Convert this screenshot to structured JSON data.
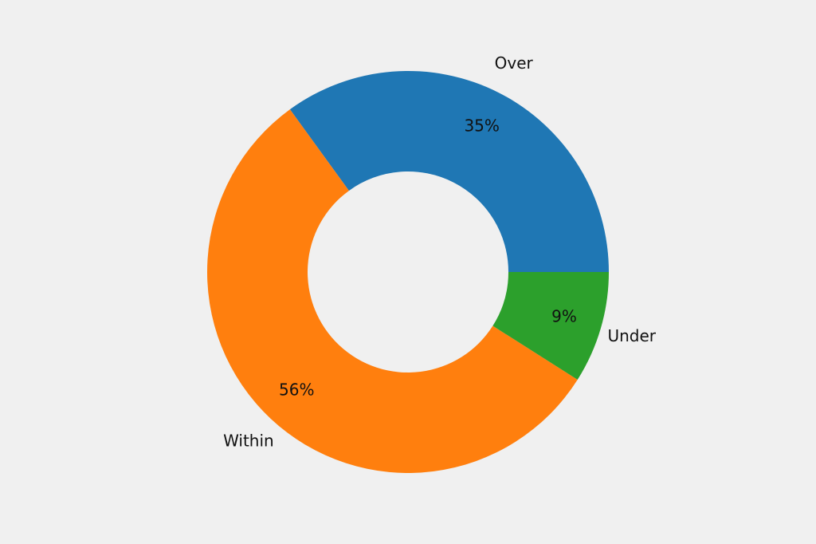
{
  "chart_data": {
    "type": "pie",
    "categories": [
      "Over",
      "Within",
      "Under"
    ],
    "values": [
      35,
      56,
      9
    ],
    "value_labels": [
      "35%",
      "56%",
      "9%"
    ],
    "colors": [
      "#1f77b4",
      "#ff7f0e",
      "#2ca02c"
    ]
  }
}
